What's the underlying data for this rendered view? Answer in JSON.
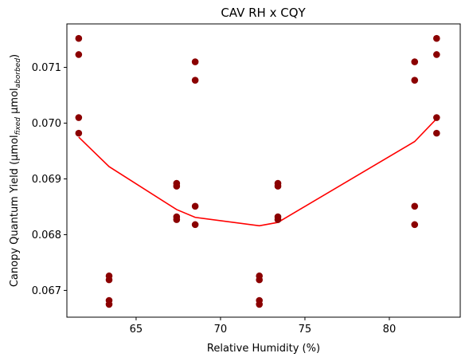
{
  "chart_data": {
    "type": "scatter",
    "title": "CAV RH x CQY",
    "xlabel": "Relative Humidity (%)",
    "ylabel_prefix": "Canopy Quantum Yield (μmol",
    "ylabel_sub1": "fixed",
    "ylabel_mid": " μmol",
    "ylabel_sub2": "aborbed",
    "ylabel_suffix": ")",
    "xlim": [
      60.9,
      84.2
    ],
    "ylim": [
      0.06652,
      0.07178
    ],
    "xticks": [
      65,
      70,
      75,
      80
    ],
    "xtick_labels": [
      "65",
      "70",
      "75",
      "80"
    ],
    "yticks": [
      0.067,
      0.068,
      0.069,
      0.07,
      0.071
    ],
    "ytick_labels": [
      "0.067",
      "0.068",
      "0.069",
      "0.070",
      "0.071"
    ],
    "grid": false,
    "colors": {
      "points": "#8b0000",
      "line": "#ff0000"
    },
    "series": [
      {
        "kind": "scatter",
        "points": [
          [
            61.6,
            0.07152
          ],
          [
            61.6,
            0.07123
          ],
          [
            61.6,
            0.0701
          ],
          [
            61.6,
            0.06982
          ],
          [
            63.4,
            0.06726
          ],
          [
            63.4,
            0.06719
          ],
          [
            63.4,
            0.06682
          ],
          [
            63.4,
            0.06675
          ],
          [
            67.4,
            0.06892
          ],
          [
            67.4,
            0.06887
          ],
          [
            67.4,
            0.06832
          ],
          [
            67.4,
            0.06827
          ],
          [
            68.5,
            0.0711
          ],
          [
            68.5,
            0.07077
          ],
          [
            68.5,
            0.06851
          ],
          [
            68.5,
            0.06818
          ],
          [
            72.3,
            0.06726
          ],
          [
            72.3,
            0.06719
          ],
          [
            72.3,
            0.06682
          ],
          [
            72.3,
            0.06675
          ],
          [
            73.4,
            0.06892
          ],
          [
            73.4,
            0.06887
          ],
          [
            73.4,
            0.06832
          ],
          [
            73.4,
            0.06827
          ],
          [
            81.5,
            0.0711
          ],
          [
            81.5,
            0.07077
          ],
          [
            81.5,
            0.06851
          ],
          [
            81.5,
            0.06818
          ],
          [
            82.8,
            0.07152
          ],
          [
            82.8,
            0.07123
          ],
          [
            82.8,
            0.0701
          ],
          [
            82.8,
            0.06982
          ]
        ]
      },
      {
        "kind": "line",
        "points": [
          [
            61.6,
            0.06975
          ],
          [
            63.4,
            0.06922
          ],
          [
            67.4,
            0.06845
          ],
          [
            68.5,
            0.06831
          ],
          [
            72.3,
            0.06816
          ],
          [
            73.4,
            0.06822
          ],
          [
            81.5,
            0.06967
          ],
          [
            82.8,
            0.07008
          ]
        ]
      }
    ]
  }
}
